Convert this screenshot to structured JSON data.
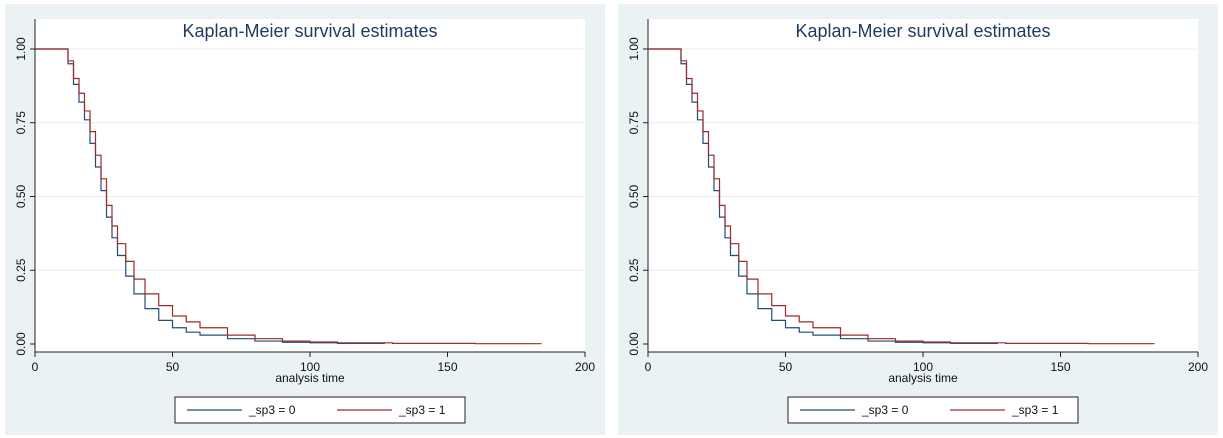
{
  "chart_data": [
    {
      "type": "line",
      "title": "Kaplan-Meier survival estimates",
      "xlabel": "analysis time",
      "ylabel": "",
      "xlim": [
        0,
        200
      ],
      "ylim": [
        0,
        1
      ],
      "x_ticks": [
        "0",
        "50",
        "100",
        "150",
        "200"
      ],
      "y_ticks": [
        "0.00",
        "0.25",
        "0.50",
        "0.75",
        "1.00"
      ],
      "grid": true,
      "legend": "bottom",
      "series": [
        {
          "name": "_sp3 = 0",
          "color": "#1f4e79",
          "x": [
            0,
            10,
            12,
            14,
            16,
            18,
            20,
            22,
            24,
            26,
            28,
            30,
            33,
            36,
            40,
            45,
            50,
            55,
            60,
            70,
            80,
            90,
            100,
            110,
            127
          ],
          "y": [
            1.0,
            1.0,
            0.95,
            0.88,
            0.82,
            0.76,
            0.68,
            0.6,
            0.52,
            0.43,
            0.36,
            0.3,
            0.23,
            0.17,
            0.12,
            0.08,
            0.055,
            0.04,
            0.03,
            0.018,
            0.01,
            0.006,
            0.004,
            0.002,
            0.0
          ]
        },
        {
          "name": "_sp3 = 1",
          "color": "#9e2a2b",
          "x": [
            0,
            10,
            12,
            14,
            16,
            18,
            20,
            22,
            24,
            26,
            28,
            30,
            33,
            36,
            40,
            45,
            50,
            55,
            60,
            70,
            80,
            90,
            100,
            110,
            130,
            160,
            184
          ],
          "y": [
            1.0,
            1.0,
            0.96,
            0.9,
            0.85,
            0.79,
            0.72,
            0.64,
            0.56,
            0.47,
            0.4,
            0.34,
            0.28,
            0.22,
            0.17,
            0.13,
            0.095,
            0.075,
            0.055,
            0.03,
            0.018,
            0.01,
            0.007,
            0.004,
            0.002,
            0.001,
            0.0
          ]
        }
      ]
    },
    {
      "type": "line",
      "title": "Kaplan-Meier survival estimates",
      "xlabel": "analysis time",
      "ylabel": "",
      "xlim": [
        0,
        200
      ],
      "ylim": [
        0,
        1
      ],
      "x_ticks": [
        "0",
        "50",
        "100",
        "150",
        "200"
      ],
      "y_ticks": [
        "0.00",
        "0.25",
        "0.50",
        "0.75",
        "1.00"
      ],
      "grid": true,
      "legend": "bottom",
      "series": [
        {
          "name": "_sp3 = 0",
          "color": "#1f4e79",
          "x": [
            0,
            10,
            12,
            14,
            16,
            18,
            20,
            22,
            24,
            26,
            28,
            30,
            33,
            36,
            40,
            45,
            50,
            55,
            60,
            70,
            80,
            90,
            100,
            110,
            127
          ],
          "y": [
            1.0,
            1.0,
            0.95,
            0.88,
            0.82,
            0.76,
            0.68,
            0.6,
            0.52,
            0.43,
            0.36,
            0.3,
            0.23,
            0.17,
            0.12,
            0.08,
            0.055,
            0.04,
            0.03,
            0.018,
            0.01,
            0.006,
            0.004,
            0.002,
            0.0
          ]
        },
        {
          "name": "_sp3 = 1",
          "color": "#9e2a2b",
          "x": [
            0,
            10,
            12,
            14,
            16,
            18,
            20,
            22,
            24,
            26,
            28,
            30,
            33,
            36,
            40,
            45,
            50,
            55,
            60,
            70,
            80,
            90,
            100,
            110,
            130,
            160,
            184
          ],
          "y": [
            1.0,
            1.0,
            0.96,
            0.9,
            0.85,
            0.79,
            0.72,
            0.64,
            0.56,
            0.47,
            0.4,
            0.34,
            0.28,
            0.22,
            0.17,
            0.13,
            0.095,
            0.075,
            0.055,
            0.03,
            0.018,
            0.01,
            0.007,
            0.004,
            0.002,
            0.001,
            0.0
          ]
        }
      ]
    }
  ]
}
